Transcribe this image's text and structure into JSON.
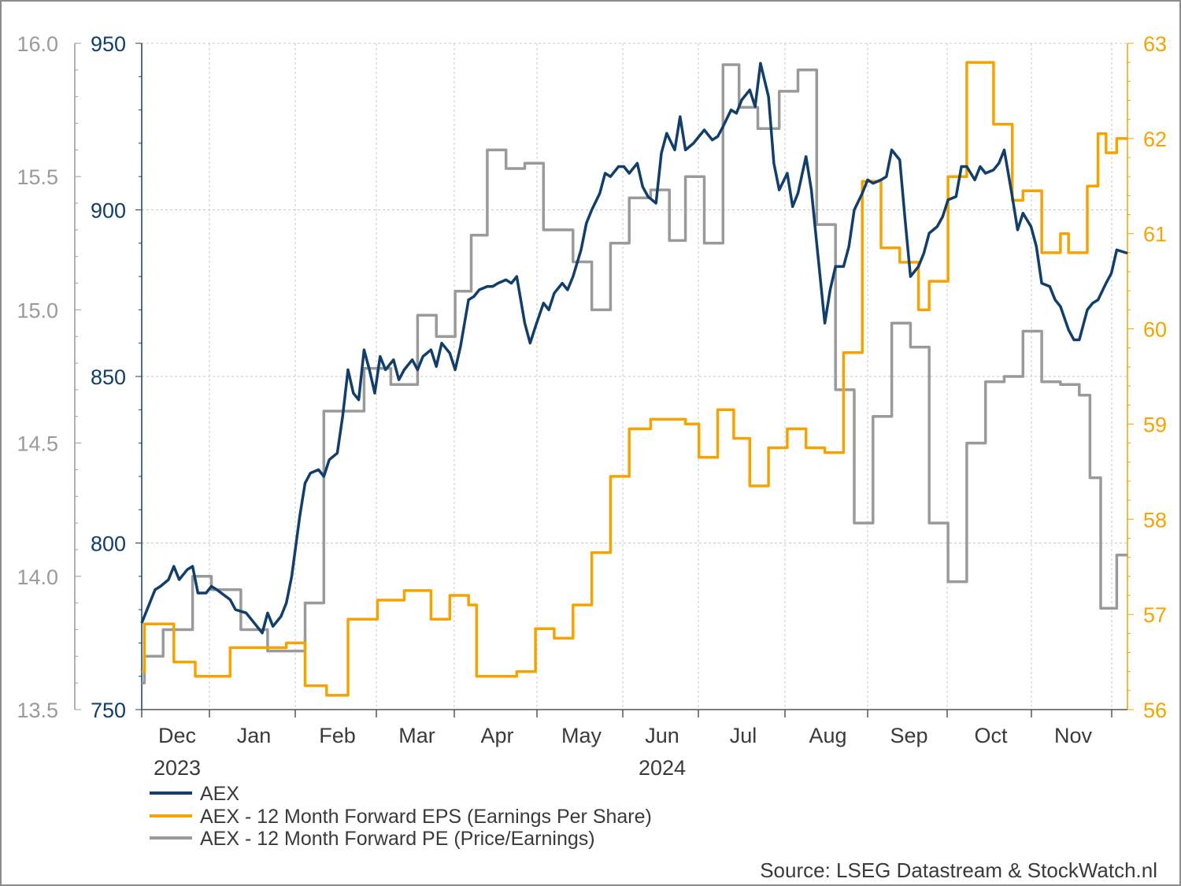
{
  "chart_data": {
    "type": "line",
    "title": "",
    "xlabel": "",
    "source": "Source: LSEG Datastream & StockWatch.nl",
    "x_months": [
      "Dec",
      "Jan",
      "Feb",
      "Mar",
      "Apr",
      "May",
      "Jun",
      "Jul",
      "Aug",
      "Sep",
      "Oct",
      "Nov"
    ],
    "x_years": [
      {
        "label": "2023",
        "month": "Dec"
      },
      {
        "label": "2024",
        "month": "Jun"
      }
    ],
    "x_range": [
      "2023-11-24",
      "2024-11-26"
    ],
    "grid": true,
    "legend_position": "bottom-left",
    "axes": {
      "left_outer": {
        "series": "AEX - 12 Month Forward PE (Price/Earnings)",
        "ylim": [
          13.5,
          16.0
        ],
        "ticks": [
          "13.5",
          "14.0",
          "14.5",
          "15.0",
          "15.5",
          "16.0"
        ],
        "color": "#9a9a9a"
      },
      "left_inner": {
        "series": "AEX",
        "ylim": [
          750,
          950
        ],
        "ticks": [
          "750",
          "800",
          "850",
          "900",
          "950"
        ],
        "color": "#123e6b"
      },
      "right": {
        "series": "AEX - 12 Month Forward EPS (Earnings Per Share)",
        "ylim": [
          56,
          63
        ],
        "ticks": [
          "56",
          "57",
          "58",
          "59",
          "60",
          "61",
          "62",
          "63"
        ],
        "color": "#f5a300"
      }
    },
    "series": [
      {
        "name": "AEX",
        "color": "#123e6b",
        "axis": "left_inner",
        "points": [
          [
            "2023-11-24",
            776
          ],
          [
            "2023-11-27",
            782
          ],
          [
            "2023-11-29",
            786
          ],
          [
            "2023-12-01",
            787
          ],
          [
            "2023-12-04",
            789
          ],
          [
            "2023-12-06",
            793
          ],
          [
            "2023-12-08",
            789
          ],
          [
            "2023-12-11",
            792
          ],
          [
            "2023-12-13",
            793
          ],
          [
            "2023-12-15",
            785
          ],
          [
            "2023-12-18",
            785
          ],
          [
            "2023-12-20",
            787
          ],
          [
            "2023-12-22",
            786
          ],
          [
            "2023-12-27",
            783
          ],
          [
            "2023-12-29",
            780
          ],
          [
            "2024-01-02",
            779
          ],
          [
            "2024-01-04",
            777
          ],
          [
            "2024-01-08",
            773
          ],
          [
            "2024-01-10",
            779
          ],
          [
            "2024-01-12",
            775
          ],
          [
            "2024-01-15",
            778
          ],
          [
            "2024-01-17",
            782
          ],
          [
            "2024-01-19",
            790
          ],
          [
            "2024-01-22",
            808
          ],
          [
            "2024-01-24",
            818
          ],
          [
            "2024-01-26",
            821
          ],
          [
            "2024-01-29",
            822
          ],
          [
            "2024-01-31",
            820
          ],
          [
            "2024-02-02",
            825
          ],
          [
            "2024-02-05",
            827
          ],
          [
            "2024-02-07",
            838
          ],
          [
            "2024-02-09",
            852
          ],
          [
            "2024-02-11",
            845
          ],
          [
            "2024-02-13",
            843
          ],
          [
            "2024-02-15",
            858
          ],
          [
            "2024-02-17",
            852
          ],
          [
            "2024-02-19",
            845
          ],
          [
            "2024-02-21",
            856
          ],
          [
            "2024-02-23",
            852
          ],
          [
            "2024-02-26",
            855
          ],
          [
            "2024-02-28",
            849
          ],
          [
            "2024-03-01",
            852
          ],
          [
            "2024-03-04",
            855
          ],
          [
            "2024-03-06",
            852
          ],
          [
            "2024-03-08",
            856
          ],
          [
            "2024-03-11",
            858
          ],
          [
            "2024-03-13",
            853
          ],
          [
            "2024-03-15",
            860
          ],
          [
            "2024-03-18",
            857
          ],
          [
            "2024-03-20",
            852
          ],
          [
            "2024-03-22",
            859
          ],
          [
            "2024-03-25",
            873
          ],
          [
            "2024-03-27",
            874
          ],
          [
            "2024-03-29",
            876
          ],
          [
            "2024-04-01",
            877
          ],
          [
            "2024-04-03",
            877
          ],
          [
            "2024-04-05",
            878
          ],
          [
            "2024-04-08",
            879
          ],
          [
            "2024-04-10",
            878
          ],
          [
            "2024-04-12",
            880
          ],
          [
            "2024-04-15",
            866
          ],
          [
            "2024-04-17",
            860
          ],
          [
            "2024-04-19",
            865
          ],
          [
            "2024-04-22",
            872
          ],
          [
            "2024-04-24",
            870
          ],
          [
            "2024-04-26",
            875
          ],
          [
            "2024-04-29",
            878
          ],
          [
            "2024-05-01",
            876
          ],
          [
            "2024-05-03",
            880
          ],
          [
            "2024-05-06",
            888
          ],
          [
            "2024-05-08",
            896
          ],
          [
            "2024-05-10",
            900
          ],
          [
            "2024-05-13",
            905
          ],
          [
            "2024-05-15",
            911
          ],
          [
            "2024-05-17",
            910
          ],
          [
            "2024-05-20",
            913
          ],
          [
            "2024-05-22",
            913
          ],
          [
            "2024-05-24",
            911
          ],
          [
            "2024-05-27",
            914
          ],
          [
            "2024-05-29",
            907
          ],
          [
            "2024-05-31",
            904
          ],
          [
            "2024-06-03",
            902
          ],
          [
            "2024-06-05",
            917
          ],
          [
            "2024-06-07",
            923
          ],
          [
            "2024-06-10",
            918
          ],
          [
            "2024-06-12",
            928
          ],
          [
            "2024-06-14",
            918
          ],
          [
            "2024-06-17",
            920
          ],
          [
            "2024-06-19",
            922
          ],
          [
            "2024-06-21",
            924
          ],
          [
            "2024-06-24",
            921
          ],
          [
            "2024-06-26",
            922
          ],
          [
            "2024-06-28",
            925
          ],
          [
            "2024-07-01",
            930
          ],
          [
            "2024-07-03",
            929
          ],
          [
            "2024-07-05",
            933
          ],
          [
            "2024-07-08",
            936
          ],
          [
            "2024-07-10",
            931
          ],
          [
            "2024-07-12",
            944
          ],
          [
            "2024-07-15",
            934
          ],
          [
            "2024-07-17",
            914
          ],
          [
            "2024-07-19",
            906
          ],
          [
            "2024-07-22",
            911
          ],
          [
            "2024-07-24",
            901
          ],
          [
            "2024-07-26",
            905
          ],
          [
            "2024-07-29",
            916
          ],
          [
            "2024-07-31",
            906
          ],
          [
            "2024-08-02",
            890
          ],
          [
            "2024-08-05",
            866
          ],
          [
            "2024-08-07",
            876
          ],
          [
            "2024-08-09",
            883
          ],
          [
            "2024-08-12",
            883
          ],
          [
            "2024-08-14",
            889
          ],
          [
            "2024-08-16",
            900
          ],
          [
            "2024-08-19",
            905
          ],
          [
            "2024-08-21",
            909
          ],
          [
            "2024-08-23",
            908
          ],
          [
            "2024-08-26",
            909
          ],
          [
            "2024-08-28",
            910
          ],
          [
            "2024-08-30",
            918
          ],
          [
            "2024-09-02",
            915
          ],
          [
            "2024-09-04",
            897
          ],
          [
            "2024-09-06",
            880
          ],
          [
            "2024-09-09",
            883
          ],
          [
            "2024-09-11",
            887
          ],
          [
            "2024-09-13",
            893
          ],
          [
            "2024-09-16",
            895
          ],
          [
            "2024-09-18",
            898
          ],
          [
            "2024-09-20",
            903
          ],
          [
            "2024-09-23",
            904
          ],
          [
            "2024-09-25",
            913
          ],
          [
            "2024-09-27",
            913
          ],
          [
            "2024-09-30",
            909
          ],
          [
            "2024-10-02",
            913
          ],
          [
            "2024-10-04",
            911
          ],
          [
            "2024-10-07",
            912
          ],
          [
            "2024-10-09",
            914
          ],
          [
            "2024-10-11",
            918
          ],
          [
            "2024-10-14",
            904
          ],
          [
            "2024-10-16",
            894
          ],
          [
            "2024-10-18",
            899
          ],
          [
            "2024-10-21",
            895
          ],
          [
            "2024-10-23",
            889
          ],
          [
            "2024-10-25",
            878
          ],
          [
            "2024-10-28",
            877
          ],
          [
            "2024-10-30",
            873
          ],
          [
            "2024-11-01",
            871
          ],
          [
            "2024-11-04",
            864
          ],
          [
            "2024-11-06",
            861
          ],
          [
            "2024-11-08",
            861
          ],
          [
            "2024-11-11",
            870
          ],
          [
            "2024-11-13",
            872
          ],
          [
            "2024-11-15",
            873
          ],
          [
            "2024-11-18",
            878
          ],
          [
            "2024-11-20",
            881
          ],
          [
            "2024-11-22",
            888
          ],
          [
            "2024-11-26",
            887
          ]
        ]
      },
      {
        "name": "AEX - 12 Month Forward EPS (Earnings Per Share)",
        "color": "#f5a300",
        "axis": "right",
        "step": true,
        "points": [
          [
            "2023-11-24",
            56.4
          ],
          [
            "2023-11-25",
            56.9
          ],
          [
            "2023-12-06",
            56.5
          ],
          [
            "2023-12-14",
            56.35
          ],
          [
            "2023-12-27",
            56.65
          ],
          [
            "2024-01-17",
            56.7
          ],
          [
            "2024-01-24",
            56.25
          ],
          [
            "2024-02-01",
            56.15
          ],
          [
            "2024-02-09",
            56.95
          ],
          [
            "2024-02-20",
            57.15
          ],
          [
            "2024-03-01",
            57.25
          ],
          [
            "2024-03-11",
            56.95
          ],
          [
            "2024-03-18",
            57.2
          ],
          [
            "2024-03-25",
            57.1
          ],
          [
            "2024-03-28",
            56.35
          ],
          [
            "2024-04-12",
            56.4
          ],
          [
            "2024-04-19",
            56.85
          ],
          [
            "2024-04-26",
            56.75
          ],
          [
            "2024-05-03",
            57.1
          ],
          [
            "2024-05-10",
            57.65
          ],
          [
            "2024-05-17",
            58.45
          ],
          [
            "2024-05-24",
            58.95
          ],
          [
            "2024-06-01",
            59.05
          ],
          [
            "2024-06-14",
            59.0
          ],
          [
            "2024-06-19",
            58.65
          ],
          [
            "2024-06-26",
            59.15
          ],
          [
            "2024-07-02",
            58.85
          ],
          [
            "2024-07-08",
            58.35
          ],
          [
            "2024-07-15",
            58.75
          ],
          [
            "2024-07-22",
            58.95
          ],
          [
            "2024-07-29",
            58.75
          ],
          [
            "2024-08-05",
            58.7
          ],
          [
            "2024-08-12",
            59.75
          ],
          [
            "2024-08-19",
            61.55
          ],
          [
            "2024-08-26",
            60.85
          ],
          [
            "2024-09-02",
            60.7
          ],
          [
            "2024-09-09",
            60.2
          ],
          [
            "2024-09-13",
            60.5
          ],
          [
            "2024-09-20",
            61.6
          ],
          [
            "2024-09-27",
            62.8
          ],
          [
            "2024-10-07",
            62.15
          ],
          [
            "2024-10-14",
            61.35
          ],
          [
            "2024-10-18",
            61.45
          ],
          [
            "2024-10-25",
            60.8
          ],
          [
            "2024-11-01",
            61.0
          ],
          [
            "2024-11-04",
            60.8
          ],
          [
            "2024-11-08",
            60.8
          ],
          [
            "2024-11-11",
            61.5
          ],
          [
            "2024-11-15",
            62.05
          ],
          [
            "2024-11-18",
            61.85
          ],
          [
            "2024-11-22",
            62.0
          ],
          [
            "2024-11-26",
            62.0
          ]
        ]
      },
      {
        "name": "AEX - 12 Month Forward PE (Price/Earnings)",
        "color": "#9a9a9a",
        "axis": "left_outer",
        "step": true,
        "points": [
          [
            "2023-11-24",
            13.6
          ],
          [
            "2023-11-25",
            13.7
          ],
          [
            "2023-12-02",
            13.8
          ],
          [
            "2023-12-13",
            14.0
          ],
          [
            "2023-12-20",
            13.95
          ],
          [
            "2023-12-31",
            13.8
          ],
          [
            "2024-01-10",
            13.72
          ],
          [
            "2024-01-24",
            13.9
          ],
          [
            "2024-01-31",
            14.62
          ],
          [
            "2024-02-15",
            14.78
          ],
          [
            "2024-02-25",
            14.72
          ],
          [
            "2024-03-06",
            14.98
          ],
          [
            "2024-03-13",
            14.9
          ],
          [
            "2024-03-20",
            15.07
          ],
          [
            "2024-03-26",
            15.28
          ],
          [
            "2024-04-01",
            15.6
          ],
          [
            "2024-04-08",
            15.53
          ],
          [
            "2024-04-15",
            15.55
          ],
          [
            "2024-04-22",
            15.3
          ],
          [
            "2024-05-03",
            15.18
          ],
          [
            "2024-05-10",
            15.0
          ],
          [
            "2024-05-17",
            15.25
          ],
          [
            "2024-05-24",
            15.42
          ],
          [
            "2024-06-01",
            15.45
          ],
          [
            "2024-06-08",
            15.26
          ],
          [
            "2024-06-14",
            15.5
          ],
          [
            "2024-06-21",
            15.25
          ],
          [
            "2024-06-28",
            15.92
          ],
          [
            "2024-07-04",
            15.76
          ],
          [
            "2024-07-11",
            15.68
          ],
          [
            "2024-07-19",
            15.82
          ],
          [
            "2024-07-26",
            15.9
          ],
          [
            "2024-08-02",
            15.32
          ],
          [
            "2024-08-09",
            14.7
          ],
          [
            "2024-08-16",
            14.2
          ],
          [
            "2024-08-23",
            14.6
          ],
          [
            "2024-08-30",
            14.95
          ],
          [
            "2024-09-06",
            14.86
          ],
          [
            "2024-09-13",
            14.2
          ],
          [
            "2024-09-20",
            13.98
          ],
          [
            "2024-09-27",
            14.5
          ],
          [
            "2024-10-04",
            14.73
          ],
          [
            "2024-10-11",
            14.75
          ],
          [
            "2024-10-18",
            14.92
          ],
          [
            "2024-10-25",
            14.73
          ],
          [
            "2024-11-01",
            14.72
          ],
          [
            "2024-11-08",
            14.68
          ],
          [
            "2024-11-12",
            14.37
          ],
          [
            "2024-11-16",
            13.88
          ],
          [
            "2024-11-22",
            14.08
          ],
          [
            "2024-11-26",
            14.08
          ]
        ]
      }
    ]
  }
}
